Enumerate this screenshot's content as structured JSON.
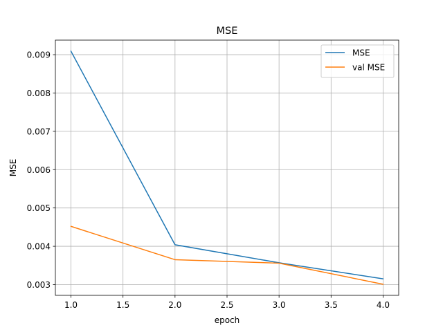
{
  "chart_data": {
    "type": "line",
    "title": "MSE",
    "xlabel": "epoch",
    "ylabel": "MSE",
    "x": [
      1.0,
      2.0,
      3.0,
      4.0
    ],
    "series": [
      {
        "name": "MSE",
        "values": [
          0.00909,
          0.00404,
          0.00357,
          0.00315
        ],
        "color": "#1f77b4"
      },
      {
        "name": "val MSE",
        "values": [
          0.00452,
          0.00365,
          0.00356,
          0.00301
        ],
        "color": "#ff7f0e"
      }
    ],
    "xlim": [
      0.85,
      4.15
    ],
    "ylim": [
      0.00272,
      0.00938
    ],
    "xticks": [
      1.0,
      1.5,
      2.0,
      2.5,
      3.0,
      3.5,
      4.0
    ],
    "xtick_labels": [
      "1.0",
      "1.5",
      "2.0",
      "2.5",
      "3.0",
      "3.5",
      "4.0"
    ],
    "yticks": [
      0.003,
      0.004,
      0.005,
      0.006,
      0.007,
      0.008,
      0.009
    ],
    "ytick_labels": [
      "0.003",
      "0.004",
      "0.005",
      "0.006",
      "0.007",
      "0.008",
      "0.009"
    ],
    "grid": true,
    "legend_position": "top-right"
  }
}
